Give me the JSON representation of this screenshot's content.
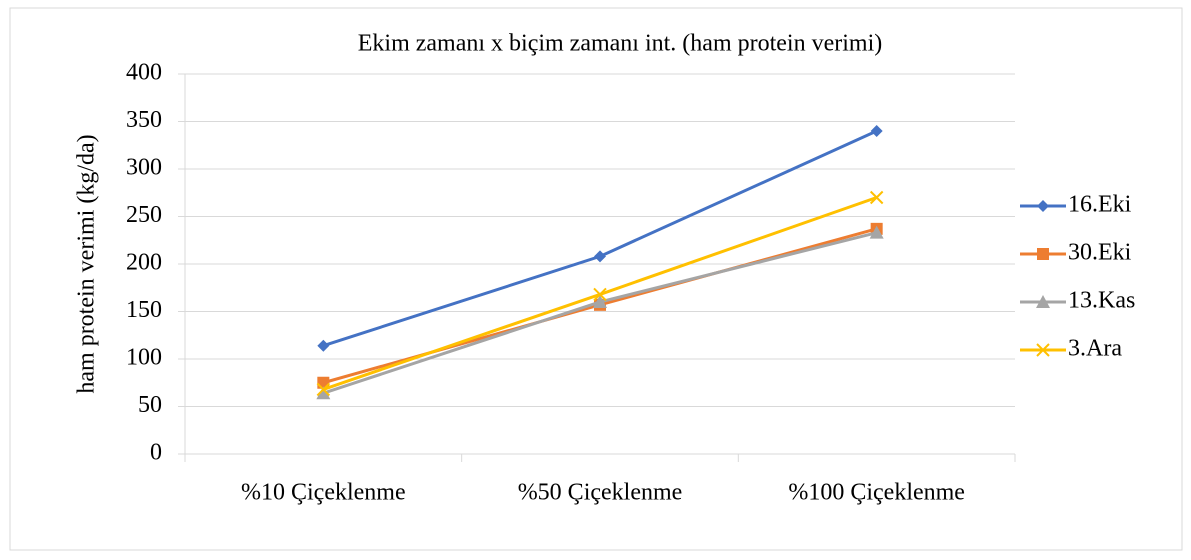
{
  "chart_data": {
    "type": "line",
    "title": "Ekim zamanı x biçim zamanı int. (ham protein verimi)",
    "y_label": "ham protein verimi (kg/da)",
    "categories": [
      "%10 Çiçeklenme",
      "%50 Çiçeklenme",
      "%100 Çiçeklenme"
    ],
    "series": [
      {
        "name": "16.Eki",
        "color": "#4472c4",
        "marker": "diamond",
        "values": [
          114,
          208,
          340
        ]
      },
      {
        "name": "30.Eki",
        "color": "#ed7d31",
        "marker": "square",
        "values": [
          75,
          157,
          237
        ]
      },
      {
        "name": "13.Kas",
        "color": "#a5a5a5",
        "marker": "triangle",
        "values": [
          64,
          160,
          233
        ]
      },
      {
        "name": "3.Ara",
        "color": "#ffc000",
        "marker": "x",
        "values": [
          68,
          168,
          270
        ]
      }
    ],
    "ylim": [
      0,
      400
    ],
    "yticks": [
      0,
      50,
      100,
      150,
      200,
      250,
      300,
      350,
      400
    ],
    "grid": true,
    "legend": "right"
  }
}
